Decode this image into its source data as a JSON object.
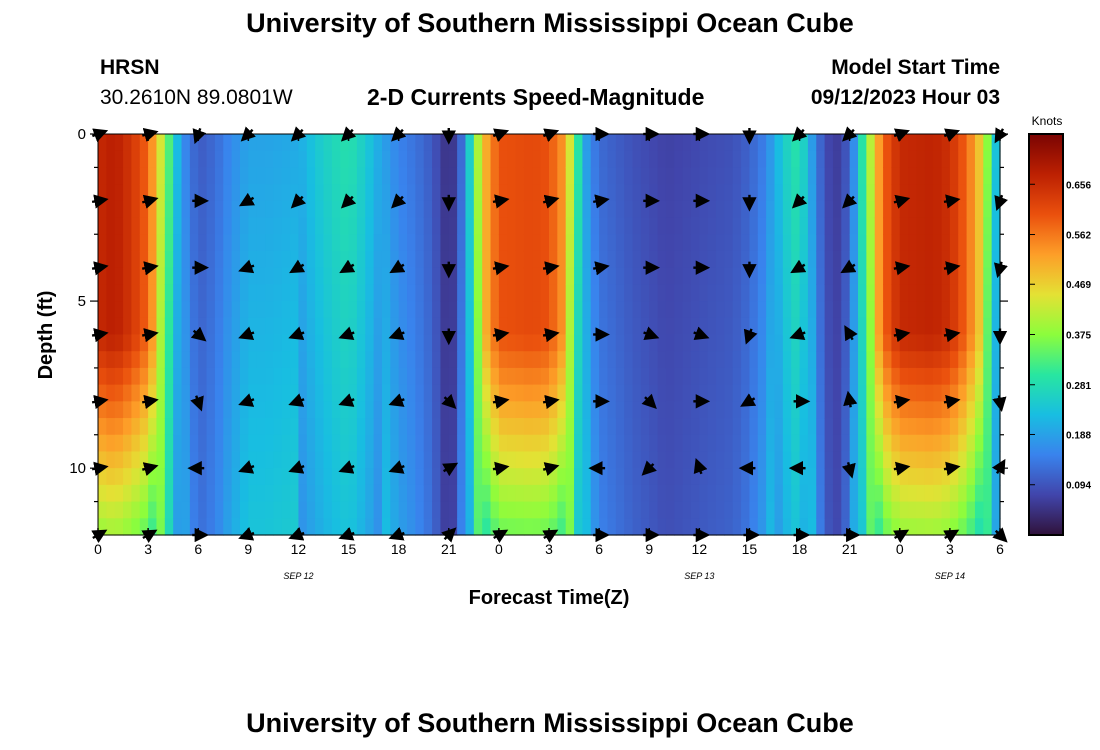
{
  "header": {
    "title": "University of Southern Mississippi Ocean Cube",
    "station": "HRSN",
    "coordinates": "30.2610N  89.0801W",
    "subtitle": "2-D Currents Speed-Magnitude",
    "model_start_label": "Model Start Time",
    "model_start_value": "09/12/2023 Hour 03"
  },
  "footer": {
    "title": "University of Southern Mississippi Ocean Cube"
  },
  "chart_data": {
    "type": "heatmap",
    "title": "2-D Currents Speed-Magnitude",
    "xlabel": "Forecast Time(Z)",
    "ylabel": "Depth (ft)",
    "x_hours_range": [
      0,
      54
    ],
    "ylim": [
      0,
      12
    ],
    "y_ticks": [
      0,
      5,
      10
    ],
    "x_tick_labels": [
      "0",
      "3",
      "6",
      "9",
      "12",
      "15",
      "18",
      "21",
      "0",
      "3",
      "6",
      "9",
      "12",
      "15",
      "18",
      "21",
      "0",
      "3",
      "6"
    ],
    "date_labels": [
      {
        "label": "SEP 12",
        "hour": 12
      },
      {
        "label": "SEP 13",
        "hour": 36
      },
      {
        "label": "SEP 14",
        "hour": 51
      }
    ],
    "colorbar": {
      "units": "Knots",
      "range": [
        0,
        0.75
      ],
      "ticks": [
        "0.094",
        "0.188",
        "0.281",
        "0.375",
        "0.469",
        "0.562",
        "0.656"
      ]
    },
    "speed_profile_knots": [
      {
        "hour": 0,
        "speed": 0.66
      },
      {
        "hour": 1,
        "speed": 0.68
      },
      {
        "hour": 2,
        "speed": 0.64
      },
      {
        "hour": 3,
        "speed": 0.58
      },
      {
        "hour": 3.7,
        "speed": 0.45
      },
      {
        "hour": 4.3,
        "speed": 0.32
      },
      {
        "hour": 5,
        "speed": 0.17
      },
      {
        "hour": 6,
        "speed": 0.1
      },
      {
        "hour": 7,
        "speed": 0.12
      },
      {
        "hour": 8,
        "speed": 0.16
      },
      {
        "hour": 9,
        "speed": 0.19
      },
      {
        "hour": 10,
        "speed": 0.19
      },
      {
        "hour": 12,
        "speed": 0.2
      },
      {
        "hour": 13,
        "speed": 0.24
      },
      {
        "hour": 14,
        "speed": 0.27
      },
      {
        "hour": 15,
        "speed": 0.29
      },
      {
        "hour": 16,
        "speed": 0.25
      },
      {
        "hour": 17,
        "speed": 0.19
      },
      {
        "hour": 18,
        "speed": 0.15
      },
      {
        "hour": 19,
        "speed": 0.13
      },
      {
        "hour": 20,
        "speed": 0.1
      },
      {
        "hour": 21,
        "speed": 0.04
      },
      {
        "hour": 21.6,
        "speed": 0.08
      },
      {
        "hour": 22.3,
        "speed": 0.27
      },
      {
        "hour": 23,
        "speed": 0.48
      },
      {
        "hour": 24,
        "speed": 0.6
      },
      {
        "hour": 26,
        "speed": 0.61
      },
      {
        "hour": 27,
        "speed": 0.6
      },
      {
        "hour": 28,
        "speed": 0.52
      },
      {
        "hour": 28.6,
        "speed": 0.33
      },
      {
        "hour": 29.3,
        "speed": 0.17
      },
      {
        "hour": 30,
        "speed": 0.12
      },
      {
        "hour": 32,
        "speed": 0.09
      },
      {
        "hour": 34,
        "speed": 0.07
      },
      {
        "hour": 36,
        "speed": 0.08
      },
      {
        "hour": 38,
        "speed": 0.09
      },
      {
        "hour": 39,
        "speed": 0.11
      },
      {
        "hour": 40,
        "speed": 0.15
      },
      {
        "hour": 41,
        "speed": 0.25
      },
      {
        "hour": 42,
        "speed": 0.3
      },
      {
        "hour": 42.6,
        "speed": 0.2
      },
      {
        "hour": 43.5,
        "speed": 0.08
      },
      {
        "hour": 44.5,
        "speed": 0.06
      },
      {
        "hour": 45.2,
        "speed": 0.15
      },
      {
        "hour": 46,
        "speed": 0.36
      },
      {
        "hour": 47,
        "speed": 0.58
      },
      {
        "hour": 48,
        "speed": 0.66
      },
      {
        "hour": 50,
        "speed": 0.67
      },
      {
        "hour": 51,
        "speed": 0.65
      },
      {
        "hour": 52,
        "speed": 0.58
      },
      {
        "hour": 53,
        "speed": 0.45
      },
      {
        "hour": 53.5,
        "speed": 0.3
      },
      {
        "hour": 54,
        "speed": 0.17
      }
    ],
    "arrows": {
      "hours": [
        0,
        3,
        6,
        9,
        12,
        15,
        18,
        21,
        24,
        27,
        30,
        33,
        36,
        39,
        42,
        45,
        48,
        51,
        54
      ],
      "depths_ft": [
        0,
        2,
        4,
        6,
        8,
        10,
        12
      ],
      "directions_deg": [
        [
          70,
          75,
          200,
          225,
          225,
          225,
          225,
          180,
          70,
          70,
          90,
          90,
          90,
          180,
          225,
          225,
          70,
          70,
          210
        ],
        [
          80,
          75,
          90,
          240,
          225,
          225,
          225,
          180,
          80,
          75,
          80,
          90,
          90,
          180,
          225,
          225,
          75,
          80,
          200
        ],
        [
          80,
          80,
          90,
          250,
          240,
          240,
          240,
          180,
          80,
          80,
          80,
          90,
          90,
          180,
          240,
          240,
          80,
          80,
          195
        ],
        [
          80,
          80,
          130,
          250,
          250,
          250,
          250,
          180,
          80,
          80,
          90,
          110,
          110,
          200,
          250,
          330,
          80,
          80,
          180
        ],
        [
          80,
          80,
          160,
          250,
          250,
          250,
          250,
          135,
          80,
          80,
          90,
          135,
          90,
          240,
          90,
          350,
          80,
          80,
          170
        ],
        [
          80,
          75,
          270,
          250,
          250,
          250,
          250,
          60,
          80,
          75,
          270,
          225,
          340,
          270,
          270,
          165,
          80,
          80,
          30
        ],
        [
          60,
          60,
          90,
          250,
          250,
          250,
          250,
          45,
          60,
          60,
          90,
          90,
          90,
          90,
          90,
          90,
          60,
          60,
          135
        ]
      ]
    }
  }
}
